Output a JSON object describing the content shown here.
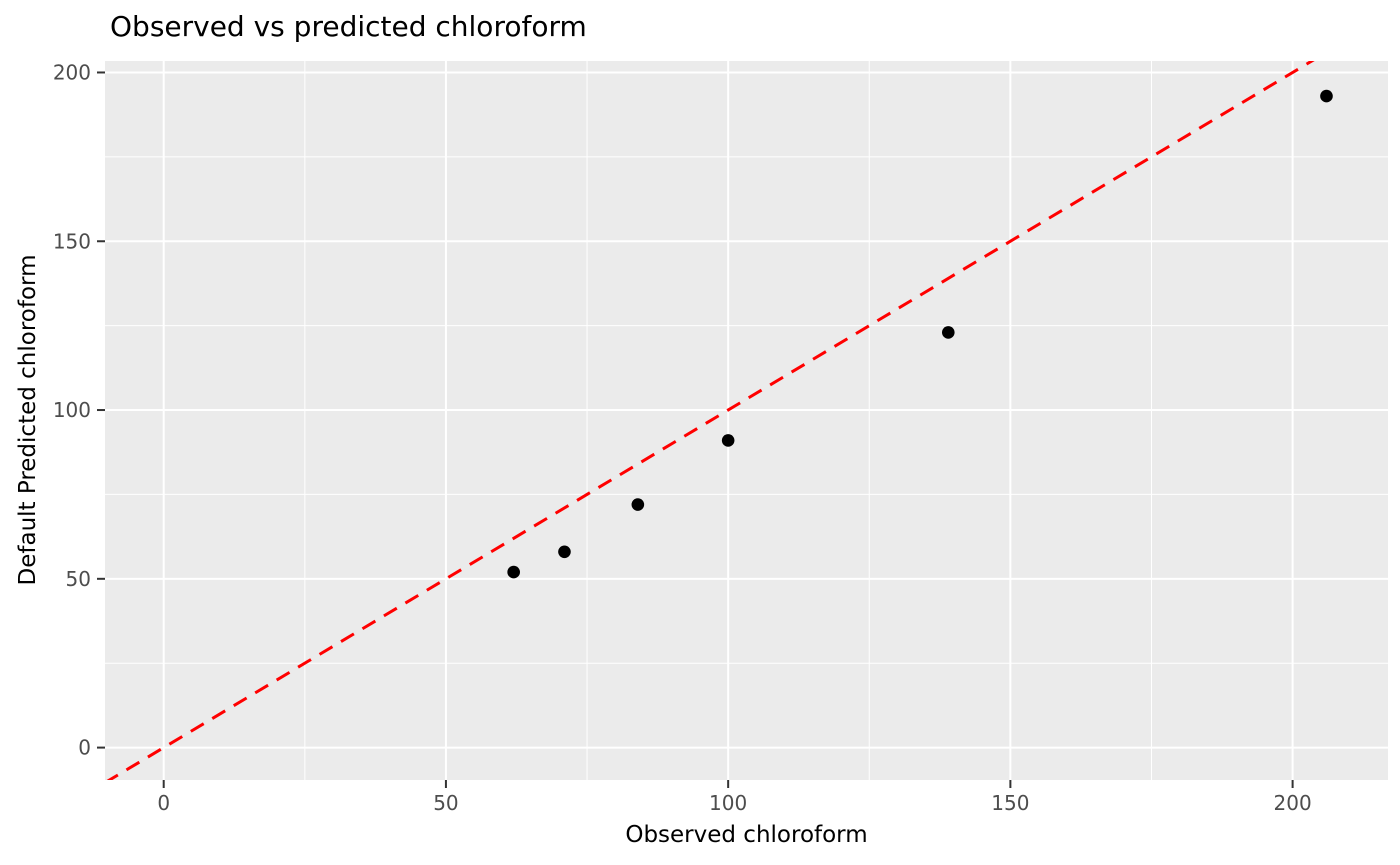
{
  "chart_data": {
    "type": "scatter",
    "title": "Observed vs predicted chloroform",
    "xlabel": "Observed chloroform",
    "ylabel": "Default Predicted chloroform",
    "points": [
      {
        "x": 62,
        "y": 52
      },
      {
        "x": 71,
        "y": 58
      },
      {
        "x": 84,
        "y": 72
      },
      {
        "x": 100,
        "y": 91
      },
      {
        "x": 139,
        "y": 123
      },
      {
        "x": 206,
        "y": 193
      }
    ],
    "reference_line": {
      "name": "identity-line",
      "intercept": 0,
      "slope": 1,
      "color": "#FF0000",
      "style": "dashed"
    },
    "x_ticks": [
      0,
      50,
      100,
      150,
      200
    ],
    "y_ticks": [
      0,
      50,
      100,
      150,
      200
    ],
    "x_minor_ticks": [
      25,
      75,
      125,
      175
    ],
    "y_minor_ticks": [
      25,
      75,
      125,
      175
    ],
    "xlim": [
      -10.4,
      216.9
    ],
    "ylim": [
      -9.6,
      203.4
    ],
    "grid": true,
    "legend": "none",
    "colors": {
      "panel_background": "#EBEBEB",
      "grid": "#FFFFFF",
      "point": "#000000",
      "tick_label": "#4D4D4D",
      "tick_mark": "#333333",
      "axis_title": "#000000",
      "title": "#000000"
    }
  }
}
